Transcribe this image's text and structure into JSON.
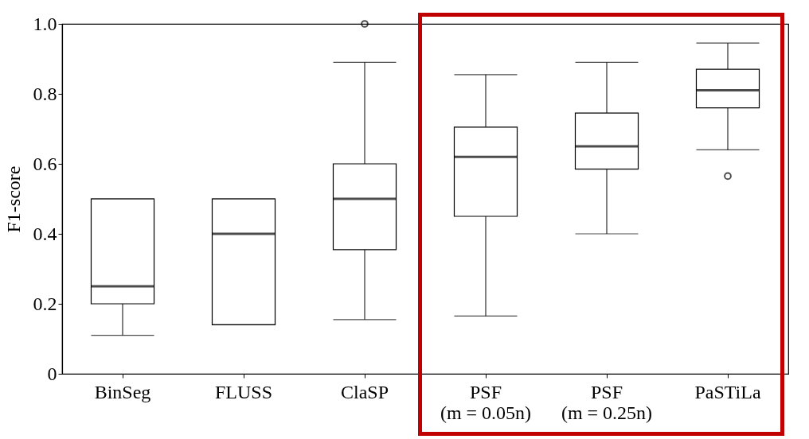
{
  "chart_data": {
    "type": "box",
    "ylabel": "F1-score",
    "categories": [
      "BinSeg",
      "FLUSS",
      "ClaSP",
      "PSF\n(m = 0.05n)",
      "PSF\n(m = 0.25n)",
      "PaSTiLa"
    ],
    "boxes": [
      {
        "low": 0.11,
        "q1": 0.2,
        "median": 0.25,
        "q3": 0.5,
        "high": 0.5
      },
      {
        "low": 0.14,
        "q1": 0.14,
        "median": 0.4,
        "q3": 0.5,
        "high": 0.5
      },
      {
        "low": 0.155,
        "q1": 0.355,
        "median": 0.5,
        "q3": 0.6,
        "high": 0.89,
        "outliers": [
          1.0
        ]
      },
      {
        "low": 0.165,
        "q1": 0.45,
        "median": 0.62,
        "q3": 0.705,
        "high": 0.855
      },
      {
        "low": 0.4,
        "q1": 0.585,
        "median": 0.65,
        "q3": 0.745,
        "high": 0.89
      },
      {
        "low": 0.64,
        "q1": 0.76,
        "median": 0.81,
        "q3": 0.87,
        "high": 0.945,
        "outliers": [
          0.565
        ]
      }
    ],
    "ylim": [
      0,
      1
    ],
    "yticks": [
      0,
      0.2,
      0.4,
      0.6,
      0.8,
      {
        "value": 1,
        "label": "1.0"
      }
    ],
    "grid": false
  }
}
